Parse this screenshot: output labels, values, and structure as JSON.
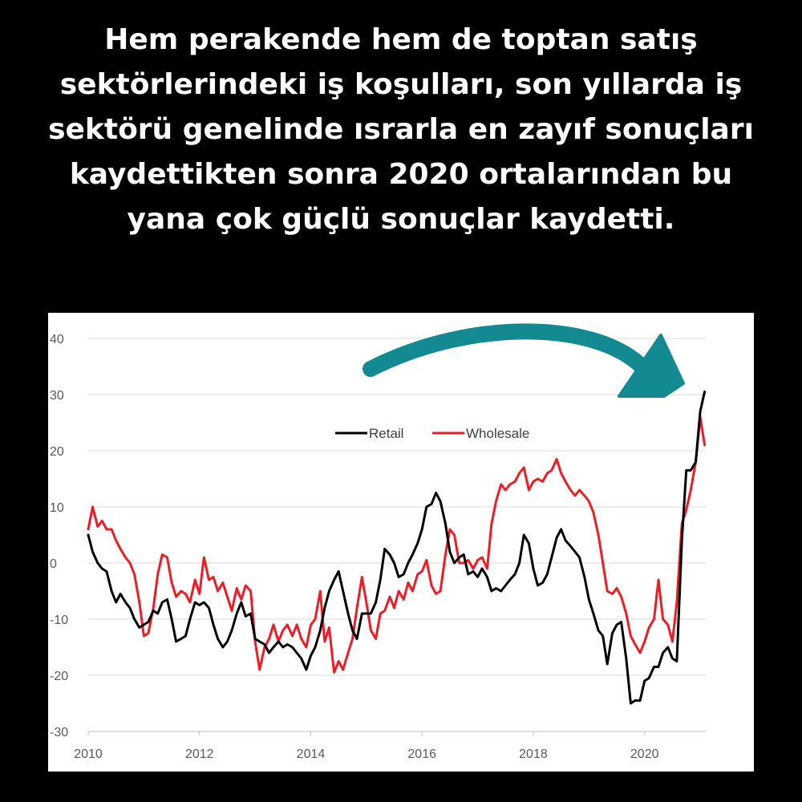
{
  "headline": {
    "lines": [
      "Hem perakende hem de toptan satış",
      "sektörlerindeki iş koşulları, son yıllarda iş",
      "sektörü genelinde ısrarla en zayıf sonuçları",
      "kaydettikten sonra 2020 ortalarından bu",
      "yana çok güçlü sonuçlar kaydetti."
    ]
  },
  "colors": {
    "background": "#000000",
    "headline_text": "#ffffff",
    "panel": "#ffffff",
    "retail": "#000000",
    "wholesale": "#ee1c25",
    "gridline": "#d9d9d9",
    "arrow": "#138a92"
  },
  "annotation": {
    "icon": "curved-arrow-icon"
  },
  "chart_data": {
    "type": "line",
    "title": "",
    "xlabel": "",
    "ylabel": "",
    "xlim": [
      2010,
      2021.1
    ],
    "ylim": [
      -30,
      40
    ],
    "x_ticks": [
      2010,
      2012,
      2014,
      2016,
      2018,
      2020
    ],
    "y_ticks": [
      40,
      30,
      20,
      10,
      0,
      -10,
      -20,
      -30
    ],
    "grid": "horizontal",
    "legend": "top-center",
    "series": [
      {
        "name": "Retail",
        "points": [
          [
            2010.0,
            5
          ],
          [
            2010.08,
            2
          ],
          [
            2010.17,
            0
          ],
          [
            2010.25,
            -1
          ],
          [
            2010.33,
            -1.5
          ],
          [
            2010.42,
            -5
          ],
          [
            2010.5,
            -7
          ],
          [
            2010.58,
            -5.5
          ],
          [
            2010.67,
            -7
          ],
          [
            2010.75,
            -8
          ],
          [
            2010.83,
            -10
          ],
          [
            2010.92,
            -11.5
          ],
          [
            2011.0,
            -11
          ],
          [
            2011.08,
            -10.5
          ],
          [
            2011.17,
            -8.5
          ],
          [
            2011.25,
            -9
          ],
          [
            2011.33,
            -7
          ],
          [
            2011.42,
            -6.5
          ],
          [
            2011.5,
            -10
          ],
          [
            2011.58,
            -14
          ],
          [
            2011.67,
            -13.5
          ],
          [
            2011.75,
            -13
          ],
          [
            2011.83,
            -10
          ],
          [
            2011.92,
            -7
          ],
          [
            2012.0,
            -7.5
          ],
          [
            2012.08,
            -7
          ],
          [
            2012.17,
            -8
          ],
          [
            2012.25,
            -11
          ],
          [
            2012.33,
            -13.5
          ],
          [
            2012.42,
            -15
          ],
          [
            2012.5,
            -14
          ],
          [
            2012.58,
            -12
          ],
          [
            2012.67,
            -9
          ],
          [
            2012.75,
            -7
          ],
          [
            2012.83,
            -9.5
          ],
          [
            2012.92,
            -9
          ],
          [
            2013.0,
            -13.5
          ],
          [
            2013.08,
            -14
          ],
          [
            2013.17,
            -14.5
          ],
          [
            2013.25,
            -16
          ],
          [
            2013.33,
            -15
          ],
          [
            2013.42,
            -14
          ],
          [
            2013.5,
            -15
          ],
          [
            2013.58,
            -14.5
          ],
          [
            2013.67,
            -15
          ],
          [
            2013.75,
            -16
          ],
          [
            2013.83,
            -17
          ],
          [
            2013.92,
            -19
          ],
          [
            2014.0,
            -16.5
          ],
          [
            2014.08,
            -15
          ],
          [
            2014.17,
            -12
          ],
          [
            2014.25,
            -8
          ],
          [
            2014.33,
            -5
          ],
          [
            2014.42,
            -3
          ],
          [
            2014.5,
            -1.5
          ],
          [
            2014.58,
            -5
          ],
          [
            2014.67,
            -9
          ],
          [
            2014.75,
            -12
          ],
          [
            2014.83,
            -13.5
          ],
          [
            2014.92,
            -9
          ],
          [
            2015.0,
            -9
          ],
          [
            2015.08,
            -9
          ],
          [
            2015.17,
            -7
          ],
          [
            2015.25,
            -3
          ],
          [
            2015.33,
            2.5
          ],
          [
            2015.42,
            1.5
          ],
          [
            2015.5,
            0
          ],
          [
            2015.58,
            -2.5
          ],
          [
            2015.67,
            -2
          ],
          [
            2015.75,
            0
          ],
          [
            2015.83,
            1.5
          ],
          [
            2015.92,
            3.5
          ],
          [
            2016.0,
            6
          ],
          [
            2016.08,
            10
          ],
          [
            2016.17,
            10.5
          ],
          [
            2016.25,
            12.5
          ],
          [
            2016.33,
            11
          ],
          [
            2016.42,
            7
          ],
          [
            2016.5,
            2
          ],
          [
            2016.58,
            0
          ],
          [
            2016.67,
            1
          ],
          [
            2016.75,
            1.5
          ],
          [
            2016.83,
            -2
          ],
          [
            2016.92,
            -1.5
          ],
          [
            2017.0,
            -2.5
          ],
          [
            2017.08,
            -1
          ],
          [
            2017.17,
            -2.5
          ],
          [
            2017.25,
            -5
          ],
          [
            2017.33,
            -4.5
          ],
          [
            2017.42,
            -5
          ],
          [
            2017.5,
            -4
          ],
          [
            2017.58,
            -3
          ],
          [
            2017.67,
            -2
          ],
          [
            2017.75,
            0
          ],
          [
            2017.83,
            5
          ],
          [
            2017.92,
            3.5
          ],
          [
            2018.0,
            -1
          ],
          [
            2018.08,
            -4
          ],
          [
            2018.17,
            -3.5
          ],
          [
            2018.25,
            -2
          ],
          [
            2018.33,
            1
          ],
          [
            2018.42,
            4.5
          ],
          [
            2018.5,
            6
          ],
          [
            2018.58,
            4
          ],
          [
            2018.67,
            3
          ],
          [
            2018.75,
            2
          ],
          [
            2018.83,
            1
          ],
          [
            2018.92,
            -2.5
          ],
          [
            2019.0,
            -6.5
          ],
          [
            2019.08,
            -9
          ],
          [
            2019.17,
            -12
          ],
          [
            2019.25,
            -13
          ],
          [
            2019.33,
            -18
          ],
          [
            2019.42,
            -12.5
          ],
          [
            2019.5,
            -11
          ],
          [
            2019.58,
            -10.5
          ],
          [
            2019.67,
            -17
          ],
          [
            2019.75,
            -25
          ],
          [
            2019.83,
            -24.5
          ],
          [
            2019.92,
            -24.5
          ],
          [
            2020.0,
            -21
          ],
          [
            2020.08,
            -20.5
          ],
          [
            2020.17,
            -18.5
          ],
          [
            2020.25,
            -18.5
          ],
          [
            2020.33,
            -16
          ],
          [
            2020.42,
            -15
          ],
          [
            2020.5,
            -17
          ],
          [
            2020.58,
            -17.5
          ],
          [
            2020.67,
            4
          ],
          [
            2020.75,
            16.5
          ],
          [
            2020.83,
            16.5
          ],
          [
            2020.92,
            18
          ],
          [
            2021.0,
            27
          ],
          [
            2021.08,
            30.5
          ]
        ]
      },
      {
        "name": "Wholesale",
        "points": [
          [
            2010.0,
            6
          ],
          [
            2010.08,
            10
          ],
          [
            2010.17,
            6.5
          ],
          [
            2010.25,
            7.5
          ],
          [
            2010.33,
            6
          ],
          [
            2010.42,
            6
          ],
          [
            2010.5,
            4
          ],
          [
            2010.58,
            2.5
          ],
          [
            2010.67,
            1
          ],
          [
            2010.75,
            0
          ],
          [
            2010.83,
            -2
          ],
          [
            2010.92,
            -7
          ],
          [
            2011.0,
            -13
          ],
          [
            2011.08,
            -12.5
          ],
          [
            2011.17,
            -8
          ],
          [
            2011.25,
            -2
          ],
          [
            2011.33,
            1.5
          ],
          [
            2011.42,
            1
          ],
          [
            2011.5,
            -3.5
          ],
          [
            2011.58,
            -6
          ],
          [
            2011.67,
            -5
          ],
          [
            2011.75,
            -5.5
          ],
          [
            2011.83,
            -7
          ],
          [
            2011.92,
            -3
          ],
          [
            2012.0,
            -5.5
          ],
          [
            2012.08,
            1
          ],
          [
            2012.17,
            -3
          ],
          [
            2012.25,
            -2.5
          ],
          [
            2012.33,
            -5
          ],
          [
            2012.42,
            -3.5
          ],
          [
            2012.5,
            -6
          ],
          [
            2012.58,
            -8.5
          ],
          [
            2012.67,
            -4.5
          ],
          [
            2012.75,
            -6.5
          ],
          [
            2012.83,
            -4
          ],
          [
            2012.92,
            -5
          ],
          [
            2013.0,
            -14
          ],
          [
            2013.08,
            -19
          ],
          [
            2013.17,
            -15
          ],
          [
            2013.25,
            -13.5
          ],
          [
            2013.33,
            -11
          ],
          [
            2013.42,
            -14
          ],
          [
            2013.5,
            -12
          ],
          [
            2013.58,
            -11
          ],
          [
            2013.67,
            -13
          ],
          [
            2013.75,
            -11
          ],
          [
            2013.83,
            -13.5
          ],
          [
            2013.92,
            -15
          ],
          [
            2014.0,
            -11
          ],
          [
            2014.08,
            -10
          ],
          [
            2014.17,
            -5
          ],
          [
            2014.25,
            -14
          ],
          [
            2014.33,
            -11.5
          ],
          [
            2014.42,
            -19.5
          ],
          [
            2014.5,
            -17.5
          ],
          [
            2014.58,
            -19
          ],
          [
            2014.67,
            -16
          ],
          [
            2014.75,
            -13.5
          ],
          [
            2014.83,
            -8
          ],
          [
            2014.92,
            -2.5
          ],
          [
            2015.0,
            -7
          ],
          [
            2015.08,
            -12
          ],
          [
            2015.17,
            -13.5
          ],
          [
            2015.25,
            -9
          ],
          [
            2015.33,
            -8.5
          ],
          [
            2015.42,
            -6
          ],
          [
            2015.5,
            -8
          ],
          [
            2015.58,
            -5
          ],
          [
            2015.67,
            -6.5
          ],
          [
            2015.75,
            -3.5
          ],
          [
            2015.83,
            -5
          ],
          [
            2015.92,
            -2
          ],
          [
            2016.0,
            -1.5
          ],
          [
            2016.08,
            0.5
          ],
          [
            2016.17,
            -4
          ],
          [
            2016.25,
            -5.5
          ],
          [
            2016.33,
            -5
          ],
          [
            2016.42,
            1.5
          ],
          [
            2016.5,
            6
          ],
          [
            2016.58,
            5
          ],
          [
            2016.67,
            0
          ],
          [
            2016.75,
            0
          ],
          [
            2016.83,
            0.5
          ],
          [
            2016.92,
            -1
          ],
          [
            2017.0,
            0.5
          ],
          [
            2017.08,
            1
          ],
          [
            2017.17,
            -1
          ],
          [
            2017.25,
            7
          ],
          [
            2017.33,
            11
          ],
          [
            2017.42,
            14
          ],
          [
            2017.5,
            13
          ],
          [
            2017.58,
            14
          ],
          [
            2017.67,
            14.5
          ],
          [
            2017.75,
            16
          ],
          [
            2017.83,
            17
          ],
          [
            2017.92,
            13
          ],
          [
            2018.0,
            14.5
          ],
          [
            2018.08,
            15
          ],
          [
            2018.17,
            14.5
          ],
          [
            2018.25,
            16
          ],
          [
            2018.33,
            16.5
          ],
          [
            2018.42,
            18.5
          ],
          [
            2018.5,
            16
          ],
          [
            2018.58,
            14.5
          ],
          [
            2018.67,
            13
          ],
          [
            2018.75,
            12
          ],
          [
            2018.83,
            13
          ],
          [
            2018.92,
            12
          ],
          [
            2019.0,
            11
          ],
          [
            2019.08,
            9
          ],
          [
            2019.17,
            5
          ],
          [
            2019.25,
            0
          ],
          [
            2019.33,
            -5
          ],
          [
            2019.42,
            -5.5
          ],
          [
            2019.5,
            -4.5
          ],
          [
            2019.58,
            -6
          ],
          [
            2019.67,
            -9
          ],
          [
            2019.75,
            -13
          ],
          [
            2019.83,
            -14.5
          ],
          [
            2019.92,
            -16
          ],
          [
            2020.0,
            -14
          ],
          [
            2020.08,
            -11.5
          ],
          [
            2020.17,
            -10
          ],
          [
            2020.25,
            -3
          ],
          [
            2020.33,
            -10
          ],
          [
            2020.42,
            -11
          ],
          [
            2020.5,
            -14
          ],
          [
            2020.58,
            -7
          ],
          [
            2020.67,
            7
          ],
          [
            2020.75,
            9.5
          ],
          [
            2020.83,
            13
          ],
          [
            2020.92,
            18
          ],
          [
            2021.0,
            26
          ],
          [
            2021.08,
            21
          ]
        ]
      }
    ]
  }
}
